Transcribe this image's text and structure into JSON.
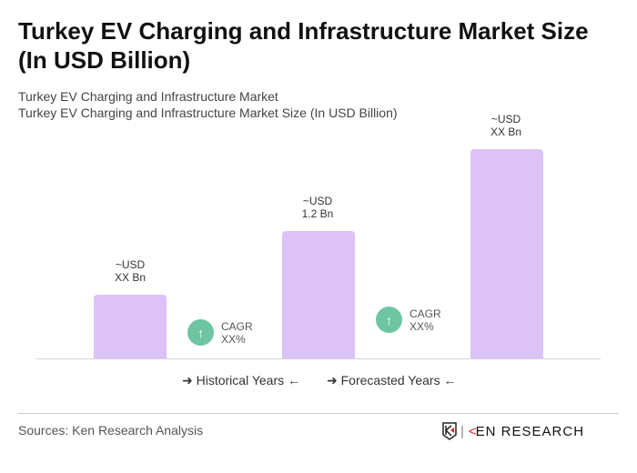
{
  "title": "Turkey EV Charging and Infrastructure Market Size (In USD Billion)",
  "subtitle1": "Turkey EV Charging and Infrastructure Market",
  "subtitle2": "Turkey EV Charging and Infrastructure Market Size (In USD Billion)",
  "chart_data": {
    "type": "bar",
    "bars": [
      {
        "line1": "~USD",
        "line2": "XX Bn"
      },
      {
        "line1": "~USD",
        "line2": "1.2 Bn"
      },
      {
        "line1": "~USD",
        "line2": "XX Bn"
      }
    ],
    "cagr": [
      {
        "label": "CAGR",
        "value": "XX%"
      },
      {
        "label": "CAGR",
        "value": "XX%"
      }
    ],
    "legend": [
      "Historical Years",
      "Forecasted Years"
    ],
    "bar_color": "#dcc2f7",
    "cagr_color": "#6dc6a1"
  },
  "footer": {
    "source": "Sources: Ken Research Analysis",
    "logo": "KEN RESEARCH"
  }
}
